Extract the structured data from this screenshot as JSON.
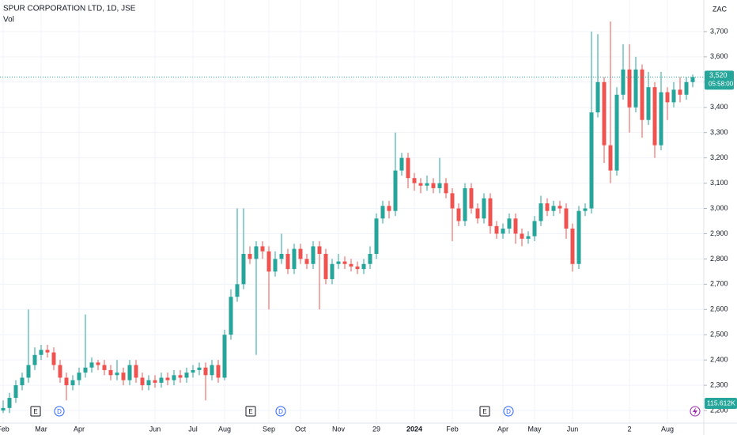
{
  "chart_data": {
    "type": "candlestick",
    "title": "SPUR CORPORATION LTD, 1D, JSE",
    "subtitle": "Vol",
    "currency": "ZAC",
    "volume_label": "115.612K",
    "countdown": "05:58:00",
    "last_price": {
      "value": 3520,
      "label": "3,520"
    },
    "events": [
      "E",
      "D",
      "E",
      "D",
      "E",
      "D"
    ],
    "up_color": "#26a69a",
    "down_color": "#ef5350",
    "grid": true,
    "categories": [
      "Feb",
      null,
      null,
      null,
      null,
      null,
      "Mar",
      null,
      null,
      null,
      null,
      null,
      "Apr",
      null,
      null,
      null,
      null,
      null,
      null,
      null,
      null,
      null,
      null,
      null,
      "Jun",
      null,
      null,
      null,
      null,
      null,
      "Jul",
      null,
      null,
      null,
      null,
      "Aug",
      null,
      null,
      null,
      null,
      null,
      null,
      "Sep",
      null,
      null,
      null,
      null,
      "Oct",
      null,
      null,
      null,
      null,
      null,
      "Nov",
      null,
      null,
      null,
      null,
      null,
      "29",
      null,
      null,
      null,
      null,
      null,
      "2024",
      null,
      null,
      null,
      null,
      null,
      "Feb",
      null,
      null,
      null,
      null,
      null,
      null,
      null,
      "Apr",
      null,
      null,
      null,
      null,
      "May",
      null,
      null,
      null,
      null,
      null,
      "Jun",
      null,
      null,
      null,
      null,
      null,
      null,
      null,
      null,
      "2",
      null,
      null,
      null,
      null,
      null,
      "Aug",
      null,
      null,
      null,
      null
    ],
    "open": [
      2200,
      2210,
      2250,
      2300,
      2330,
      2380,
      2420,
      2440,
      2430,
      2380,
      2330,
      2300,
      2320,
      2350,
      2370,
      2390,
      2380,
      2360,
      2340,
      2350,
      2320,
      2380,
      2330,
      2300,
      2320,
      2310,
      2330,
      2320,
      2340,
      2330,
      2350,
      2360,
      2370,
      2340,
      2380,
      2330,
      2500,
      2650,
      2700,
      2820,
      2800,
      2850,
      2830,
      2750,
      2800,
      2820,
      2760,
      2840,
      2800,
      2780,
      2850,
      2820,
      2720,
      2780,
      2790,
      2780,
      2770,
      2760,
      2780,
      2820,
      2960,
      3010,
      2990,
      3150,
      3200,
      3120,
      3100,
      3090,
      3100,
      3080,
      3100,
      3060,
      3000,
      2950,
      3080,
      3000,
      2960,
      3040,
      2930,
      2900,
      2920,
      2960,
      2900,
      2880,
      2890,
      2950,
      3020,
      2990,
      3010,
      3000,
      2920,
      2780,
      2990,
      3000,
      3380,
      3500,
      3250,
      3150,
      3450,
      3550,
      3400,
      3550,
      3350,
      3480,
      3250,
      3460,
      3420,
      3470,
      3450,
      3500
    ],
    "high": [
      2240,
      2270,
      2320,
      2350,
      2600,
      2450,
      2460,
      2460,
      2450,
      2400,
      2350,
      2340,
      2370,
      2580,
      2410,
      2400,
      2400,
      2380,
      2400,
      2370,
      2400,
      2400,
      2350,
      2340,
      2340,
      2350,
      2350,
      2360,
      2360,
      2370,
      2380,
      2390,
      2390,
      2400,
      2400,
      2520,
      2680,
      3000,
      3000,
      2850,
      2870,
      2870,
      2850,
      2830,
      2900,
      2840,
      2860,
      2860,
      2820,
      2870,
      2870,
      2840,
      2800,
      2820,
      2810,
      2800,
      2790,
      2800,
      2850,
      2980,
      3030,
      3030,
      3300,
      3220,
      3220,
      3140,
      3120,
      3130,
      3120,
      3200,
      3120,
      3080,
      3020,
      3100,
      3100,
      3020,
      3060,
      3060,
      2950,
      2940,
      2980,
      2980,
      2920,
      2910,
      2970,
      3050,
      3040,
      3030,
      3030,
      3020,
      2940,
      3010,
      3020,
      3700,
      3690,
      3520,
      3740,
      3480,
      3650,
      3650,
      3600,
      3570,
      3540,
      3500,
      3540,
      3480,
      3500,
      3520,
      3520,
      3530
    ],
    "low": [
      2190,
      2190,
      2230,
      2280,
      2310,
      2360,
      2400,
      2410,
      2360,
      2310,
      2240,
      2280,
      2300,
      2330,
      2350,
      2360,
      2340,
      2320,
      2320,
      2300,
      2300,
      2310,
      2280,
      2280,
      2290,
      2290,
      2300,
      2300,
      2310,
      2310,
      2330,
      2340,
      2240,
      2320,
      2310,
      2320,
      2480,
      2630,
      2680,
      2780,
      2420,
      2800,
      2600,
      2730,
      2780,
      2740,
      2740,
      2780,
      2760,
      2760,
      2600,
      2700,
      2700,
      2760,
      2760,
      2750,
      2740,
      2740,
      2760,
      2800,
      2940,
      2960,
      2970,
      3130,
      3080,
      3070,
      3060,
      3070,
      3060,
      3060,
      3040,
      2870,
      2930,
      2930,
      2980,
      2940,
      2940,
      2900,
      2880,
      2880,
      2900,
      2860,
      2850,
      2860,
      2870,
      2930,
      2970,
      2970,
      2980,
      2880,
      2750,
      2760,
      2970,
      2980,
      3360,
      3180,
      3100,
      3130,
      3430,
      3300,
      3380,
      3280,
      3330,
      3200,
      3230,
      3350,
      3400,
      3420,
      3430,
      3480
    ],
    "close": [
      2210,
      2250,
      2300,
      2330,
      2380,
      2420,
      2440,
      2430,
      2380,
      2330,
      2300,
      2320,
      2350,
      2370,
      2390,
      2380,
      2360,
      2340,
      2350,
      2320,
      2380,
      2330,
      2300,
      2320,
      2310,
      2330,
      2320,
      2340,
      2330,
      2350,
      2360,
      2370,
      2340,
      2380,
      2330,
      2500,
      2650,
      2700,
      2820,
      2800,
      2850,
      2830,
      2750,
      2800,
      2820,
      2760,
      2840,
      2800,
      2780,
      2850,
      2820,
      2720,
      2780,
      2790,
      2780,
      2770,
      2760,
      2780,
      2820,
      2960,
      3010,
      2990,
      3150,
      3200,
      3120,
      3100,
      3090,
      3100,
      3080,
      3100,
      3060,
      3000,
      2950,
      3080,
      3000,
      2960,
      3040,
      2930,
      2900,
      2920,
      2960,
      2900,
      2880,
      2890,
      2950,
      3020,
      2990,
      3010,
      3000,
      2920,
      2780,
      2990,
      3000,
      3380,
      3500,
      3250,
      3150,
      3450,
      3550,
      3400,
      3550,
      3350,
      3480,
      3250,
      3460,
      3420,
      3470,
      3450,
      3500,
      3520
    ],
    "ylim": [
      2150,
      3825
    ],
    "yticks": [
      {
        "value": 2200,
        "label": "2,200"
      },
      {
        "value": 2300,
        "label": "2,300"
      },
      {
        "value": 2400,
        "label": "2,400"
      },
      {
        "value": 2500,
        "label": "2,500"
      },
      {
        "value": 2600,
        "label": "2,600"
      },
      {
        "value": 2700,
        "label": "2,700"
      },
      {
        "value": 2800,
        "label": "2,800"
      },
      {
        "value": 2900,
        "label": "2,900"
      },
      {
        "value": 3000,
        "label": "3,000"
      },
      {
        "value": 3100,
        "label": "3,100"
      },
      {
        "value": 3200,
        "label": "3,200"
      },
      {
        "value": 3300,
        "label": "3,300"
      },
      {
        "value": 3400,
        "label": "3,400"
      },
      {
        "value": 3500,
        "label": "3,500"
      },
      {
        "value": 3600,
        "label": "3,600"
      },
      {
        "value": 3700,
        "label": "3,700"
      }
    ]
  }
}
